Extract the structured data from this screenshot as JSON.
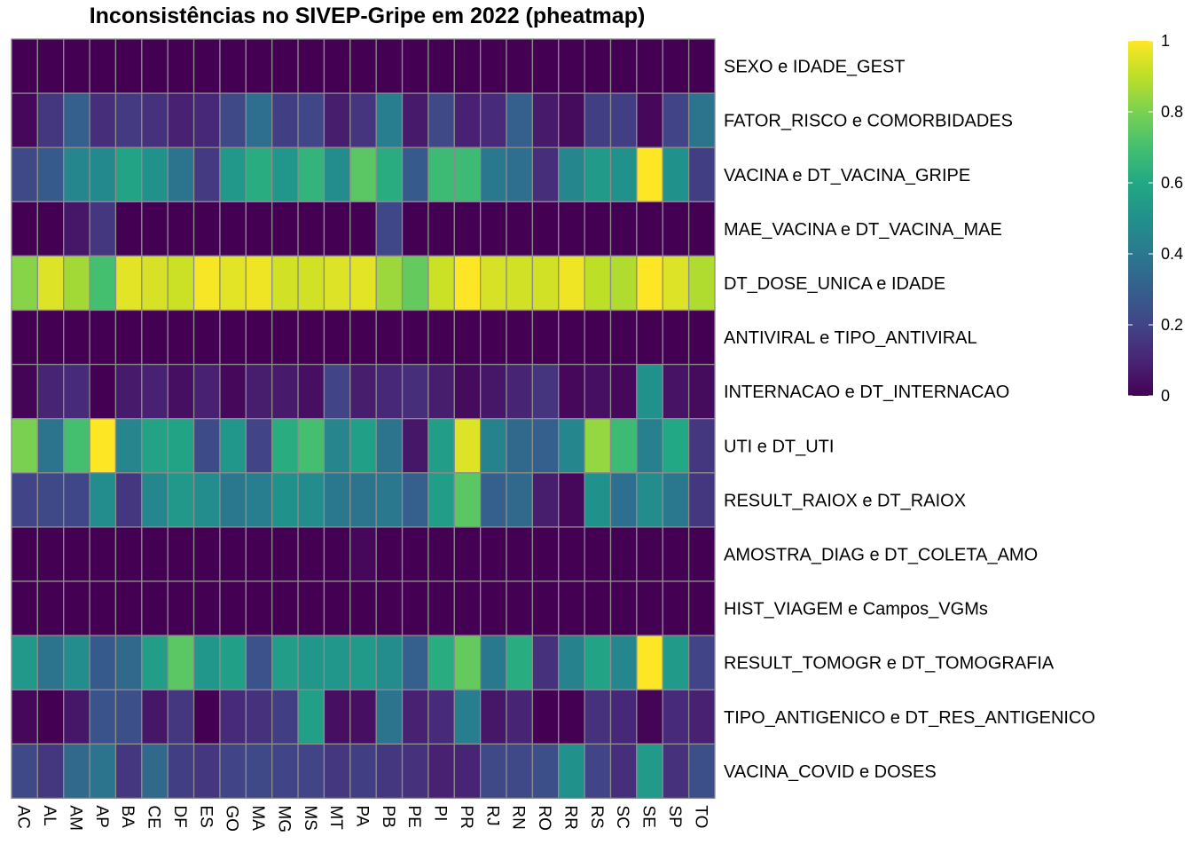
{
  "chart_data": {
    "type": "heatmap",
    "title": "Inconsistências no SIVEP-Gripe em 2022 (pheatmap)",
    "columns": [
      "AC",
      "AL",
      "AM",
      "AP",
      "BA",
      "CE",
      "DF",
      "ES",
      "GO",
      "MA",
      "MG",
      "MS",
      "MT",
      "PA",
      "PB",
      "PE",
      "PI",
      "PR",
      "RJ",
      "RN",
      "RO",
      "RR",
      "RS",
      "SC",
      "SE",
      "SP",
      "TO"
    ],
    "rows": [
      "SEXO e IDADE_GEST",
      "FATOR_RISCO e COMORBIDADES",
      "VACINA e DT_VACINA_GRIPE",
      "MAE_VACINA e DT_VACINA_MAE",
      "DT_DOSE_UNICA e IDADE",
      "ANTIVIRAL e TIPO_ANTIVIRAL",
      "INTERNACAO e DT_INTERNACAO",
      "UTI e DT_UTI",
      "RESULT_RAIOX e DT_RAIOX",
      "AMOSTRA_DIAG e DT_COLETA_AMO",
      "HIST_VIAGEM e Campos_VGMs",
      "RESULT_TOMOGR e DT_TOMOGRAFIA",
      "TIPO_ANTIGENICO e DT_RES_ANTIGENICO",
      "VACINA_COVID e DOSES"
    ],
    "values": [
      [
        0.0,
        0.0,
        0.0,
        0.0,
        0.0,
        0.0,
        0.0,
        0.0,
        0.0,
        0.0,
        0.0,
        0.0,
        0.0,
        0.0,
        0.0,
        0.0,
        0.0,
        0.0,
        0.0,
        0.0,
        0.0,
        0.0,
        0.0,
        0.0,
        0.0,
        0.0,
        0.0
      ],
      [
        0.02,
        0.16,
        0.3,
        0.13,
        0.17,
        0.14,
        0.09,
        0.11,
        0.22,
        0.36,
        0.18,
        0.21,
        0.08,
        0.15,
        0.42,
        0.07,
        0.22,
        0.09,
        0.12,
        0.3,
        0.07,
        0.03,
        0.18,
        0.18,
        0.02,
        0.2,
        0.38
      ],
      [
        0.22,
        0.28,
        0.46,
        0.47,
        0.58,
        0.5,
        0.38,
        0.17,
        0.53,
        0.62,
        0.52,
        0.65,
        0.48,
        0.74,
        0.62,
        0.28,
        0.68,
        0.68,
        0.4,
        0.36,
        0.13,
        0.46,
        0.54,
        0.5,
        1.0,
        0.5,
        0.18
      ],
      [
        0.0,
        0.0,
        0.06,
        0.16,
        0.0,
        0.0,
        0.0,
        0.0,
        0.0,
        0.0,
        0.0,
        0.0,
        0.0,
        0.0,
        0.21,
        0.0,
        0.0,
        0.0,
        0.0,
        0.0,
        0.0,
        0.0,
        0.0,
        0.0,
        0.0,
        0.0,
        0.0
      ],
      [
        0.82,
        0.95,
        0.86,
        0.7,
        0.96,
        0.94,
        0.92,
        0.99,
        0.96,
        0.98,
        0.93,
        0.93,
        0.95,
        0.96,
        0.85,
        0.76,
        0.92,
        1.0,
        0.94,
        0.93,
        0.93,
        0.98,
        0.9,
        0.88,
        1.0,
        0.95,
        0.88
      ],
      [
        0.0,
        0.0,
        0.0,
        0.0,
        0.0,
        0.0,
        0.0,
        0.0,
        0.0,
        0.0,
        0.0,
        0.0,
        0.0,
        0.0,
        0.0,
        0.0,
        0.0,
        0.0,
        0.0,
        0.0,
        0.0,
        0.0,
        0.0,
        0.0,
        0.0,
        0.0,
        0.0
      ],
      [
        0.01,
        0.1,
        0.12,
        0.0,
        0.07,
        0.09,
        0.04,
        0.09,
        0.02,
        0.08,
        0.07,
        0.04,
        0.2,
        0.08,
        0.11,
        0.13,
        0.08,
        0.03,
        0.06,
        0.1,
        0.15,
        0.02,
        0.04,
        0.02,
        0.5,
        0.05,
        0.03
      ],
      [
        0.8,
        0.38,
        0.7,
        1.0,
        0.45,
        0.58,
        0.58,
        0.23,
        0.52,
        0.2,
        0.62,
        0.7,
        0.45,
        0.56,
        0.38,
        0.06,
        0.55,
        0.95,
        0.44,
        0.34,
        0.3,
        0.46,
        0.84,
        0.68,
        0.43,
        0.6,
        0.16
      ],
      [
        0.2,
        0.22,
        0.21,
        0.48,
        0.16,
        0.46,
        0.53,
        0.48,
        0.4,
        0.42,
        0.5,
        0.48,
        0.4,
        0.38,
        0.4,
        0.3,
        0.55,
        0.74,
        0.3,
        0.34,
        0.08,
        0.02,
        0.5,
        0.36,
        0.48,
        0.4,
        0.16
      ],
      [
        0.0,
        0.0,
        0.0,
        0.0,
        0.0,
        0.0,
        0.0,
        0.0,
        0.0,
        0.0,
        0.0,
        0.0,
        0.0,
        0.02,
        0.0,
        0.0,
        0.0,
        0.0,
        0.0,
        0.0,
        0.0,
        0.0,
        0.0,
        0.0,
        0.0,
        0.0,
        0.0
      ],
      [
        0.0,
        0.0,
        0.0,
        0.0,
        0.0,
        0.0,
        0.0,
        0.0,
        0.0,
        0.0,
        0.0,
        0.0,
        0.0,
        0.0,
        0.0,
        0.0,
        0.0,
        0.0,
        0.0,
        0.0,
        0.0,
        0.0,
        0.0,
        0.0,
        0.0,
        0.0,
        0.0
      ],
      [
        0.53,
        0.38,
        0.48,
        0.28,
        0.34,
        0.55,
        0.74,
        0.52,
        0.56,
        0.25,
        0.55,
        0.52,
        0.52,
        0.54,
        0.48,
        0.3,
        0.62,
        0.76,
        0.4,
        0.62,
        0.14,
        0.44,
        0.58,
        0.46,
        1.0,
        0.54,
        0.2
      ],
      [
        0.02,
        0.0,
        0.06,
        0.26,
        0.24,
        0.06,
        0.16,
        0.0,
        0.12,
        0.14,
        0.18,
        0.56,
        0.04,
        0.04,
        0.38,
        0.09,
        0.12,
        0.42,
        0.06,
        0.1,
        0.0,
        0.0,
        0.14,
        0.11,
        0.01,
        0.12,
        0.09
      ],
      [
        0.22,
        0.16,
        0.34,
        0.38,
        0.16,
        0.34,
        0.18,
        0.16,
        0.2,
        0.22,
        0.2,
        0.2,
        0.16,
        0.18,
        0.16,
        0.14,
        0.09,
        0.1,
        0.22,
        0.22,
        0.24,
        0.5,
        0.2,
        0.13,
        0.54,
        0.14,
        0.24
      ]
    ],
    "legend": {
      "ticks": [
        1,
        0.8,
        0.6,
        0.4,
        0.2,
        0
      ],
      "tick_labels": [
        "1",
        "0.8",
        "0.6",
        "0.4",
        "0.2",
        "0"
      ],
      "placement": "right"
    },
    "colormap": "viridis",
    "cell_border_color": "#8c8c8c",
    "range": [
      0,
      1
    ]
  }
}
